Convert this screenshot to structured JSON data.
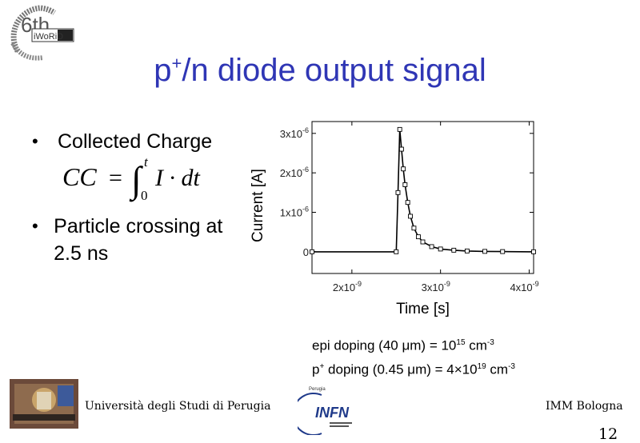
{
  "logo_left": {
    "big_text": "6th",
    "small_text": "iWoRiD",
    "ring_text": "International Workshop on Radiation Imaging Detectors"
  },
  "title": {
    "prefix": "p",
    "sup": "+",
    "rest": "/n diode output signal"
  },
  "bullets": [
    {
      "text": "Collected Charge"
    },
    {
      "text": "Particle crossing at 2.5 ns"
    }
  ],
  "formula": {
    "lhs": "CC",
    "eq": "=",
    "upper": "t",
    "lower": "0",
    "body": "I · dt"
  },
  "caption": {
    "line1": {
      "text": "epi doping (40 μm) = 10",
      "sup1": "15",
      "unit": " cm",
      "sup2": "-3"
    },
    "line2": {
      "p": "p",
      "psup": "+",
      "text": " doping (0.45 μm) = 4×10",
      "sup1": "19",
      "unit": " cm",
      "sup2": "-3"
    }
  },
  "footer": {
    "university": "Università degli Studi di Perugia",
    "infn_small": "Perugia",
    "infn": "INFN",
    "imm": "IMM Bologna",
    "page": "12"
  },
  "chart_data": {
    "type": "line",
    "xlabel": "Time [s]",
    "ylabel": "Current [A]",
    "xlim": [
      1.55e-09,
      4.05e-09
    ],
    "ylim": [
      -5.5e-07,
      3.3e-06
    ],
    "xticks": [
      {
        "value": 2e-09,
        "mantissa": "2x10",
        "exp": "-9"
      },
      {
        "value": 3e-09,
        "mantissa": "3x10",
        "exp": "-9"
      },
      {
        "value": 4e-09,
        "mantissa": "4x10",
        "exp": "-9"
      }
    ],
    "yticks": [
      {
        "value": 0,
        "mantissa": "0",
        "exp": ""
      },
      {
        "value": 1e-06,
        "mantissa": "1x10",
        "exp": "-6"
      },
      {
        "value": 2e-06,
        "mantissa": "2x10",
        "exp": "-6"
      },
      {
        "value": 3e-06,
        "mantissa": "3x10",
        "exp": "-6"
      }
    ],
    "grid": false,
    "series": [
      {
        "x": [
          1.55e-09,
          2.5e-09,
          2.52e-09,
          2.54e-09,
          2.56e-09,
          2.58e-09,
          2.6e-09,
          2.63e-09,
          2.66e-09,
          2.7e-09,
          2.75e-09,
          2.8e-09,
          2.9e-09,
          3e-09,
          3.15e-09,
          3.3e-09,
          3.5e-09,
          3.7e-09,
          4.05e-09
        ],
        "y": [
          0,
          0,
          1.5e-06,
          3.1e-06,
          2.6e-06,
          2.1e-06,
          1.7e-06,
          1.25e-06,
          9e-07,
          6e-07,
          3.8e-07,
          2.5e-07,
          1.3e-07,
          7e-08,
          4e-08,
          2e-08,
          1e-08,
          5e-09,
          0
        ]
      }
    ]
  }
}
